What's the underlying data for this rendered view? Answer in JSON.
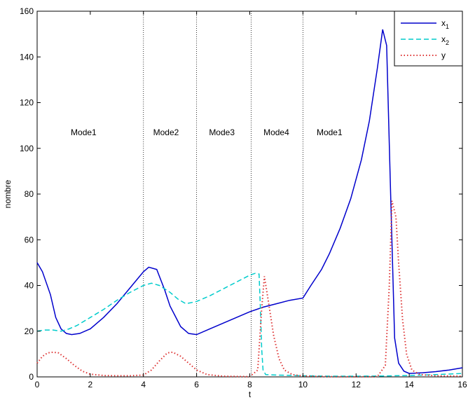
{
  "chart_data": {
    "type": "line",
    "title": "",
    "xlabel": "t",
    "ylabel": "nombre",
    "xlim": [
      0,
      16
    ],
    "ylim": [
      0,
      160
    ],
    "x_ticks": [
      0,
      2,
      4,
      6,
      8,
      10,
      12,
      14,
      16
    ],
    "y_ticks": [
      0,
      20,
      40,
      60,
      80,
      100,
      120,
      140,
      160
    ],
    "grid": false,
    "legend_position": "top-right",
    "mode_boundaries": [
      4,
      6,
      8.05,
      10
    ],
    "mode_labels": [
      {
        "text": "Mode1",
        "x": 1.75,
        "y": 107
      },
      {
        "text": "Mode2",
        "x": 4.85,
        "y": 107
      },
      {
        "text": "Mode3",
        "x": 6.95,
        "y": 107
      },
      {
        "text": "Mode4",
        "x": 9.0,
        "y": 107
      },
      {
        "text": "Mode1",
        "x": 11.0,
        "y": 107
      }
    ],
    "legend": [
      {
        "label": "x",
        "sub": "1"
      },
      {
        "label": "x",
        "sub": "2"
      },
      {
        "label": "y",
        "sub": ""
      }
    ],
    "series": [
      {
        "color": "#0000cc",
        "dash": "solid",
        "points": [
          [
            0,
            50
          ],
          [
            0.2,
            46
          ],
          [
            0.5,
            36
          ],
          [
            0.7,
            26
          ],
          [
            0.9,
            21
          ],
          [
            1.1,
            19
          ],
          [
            1.3,
            18.5
          ],
          [
            1.6,
            19
          ],
          [
            2,
            21
          ],
          [
            2.5,
            26
          ],
          [
            3,
            32
          ],
          [
            3.5,
            39
          ],
          [
            4,
            46
          ],
          [
            4.2,
            48
          ],
          [
            4.5,
            47
          ],
          [
            4.8,
            38
          ],
          [
            5,
            31
          ],
          [
            5.4,
            22
          ],
          [
            5.7,
            19
          ],
          [
            6,
            18.5
          ],
          [
            6.5,
            21
          ],
          [
            7,
            23.5
          ],
          [
            7.5,
            26
          ],
          [
            8,
            28.5
          ],
          [
            8.5,
            30.5
          ],
          [
            9,
            32
          ],
          [
            9.5,
            33.5
          ],
          [
            10,
            34.5
          ],
          [
            10.3,
            40
          ],
          [
            10.7,
            47
          ],
          [
            11,
            54
          ],
          [
            11.4,
            65
          ],
          [
            11.8,
            78
          ],
          [
            12.2,
            95
          ],
          [
            12.5,
            112
          ],
          [
            12.8,
            135
          ],
          [
            13,
            152
          ],
          [
            13.15,
            145
          ],
          [
            13.3,
            80
          ],
          [
            13.45,
            17
          ],
          [
            13.6,
            6
          ],
          [
            13.8,
            2.5
          ],
          [
            14,
            1.5
          ],
          [
            14.5,
            1.8
          ],
          [
            15,
            2.3
          ],
          [
            15.5,
            3
          ],
          [
            16,
            4
          ]
        ]
      },
      {
        "color": "#00cccc",
        "dash": "dashed",
        "points": [
          [
            0,
            20
          ],
          [
            0.3,
            20.5
          ],
          [
            0.6,
            20.5
          ],
          [
            0.9,
            20
          ],
          [
            1.2,
            21
          ],
          [
            1.5,
            22.5
          ],
          [
            2,
            26
          ],
          [
            2.5,
            29.5
          ],
          [
            3,
            33.5
          ],
          [
            3.5,
            37
          ],
          [
            4,
            40
          ],
          [
            4.3,
            41
          ],
          [
            4.6,
            40
          ],
          [
            5,
            37
          ],
          [
            5.3,
            34
          ],
          [
            5.6,
            32
          ],
          [
            6,
            33
          ],
          [
            6.5,
            35.5
          ],
          [
            7,
            38.5
          ],
          [
            7.5,
            41.5
          ],
          [
            8,
            44.5
          ],
          [
            8.2,
            45.3
          ],
          [
            8.35,
            45
          ],
          [
            8.4,
            30
          ],
          [
            8.45,
            12
          ],
          [
            8.5,
            3
          ],
          [
            8.6,
            1
          ],
          [
            9,
            0.8
          ],
          [
            10,
            0.5
          ],
          [
            11,
            0.3
          ],
          [
            12,
            0.3
          ],
          [
            13,
            0.4
          ],
          [
            14,
            0.6
          ],
          [
            15,
            1
          ],
          [
            16,
            1.5
          ]
        ]
      },
      {
        "color": "#dd3333",
        "dash": "dotted",
        "points": [
          [
            0,
            6
          ],
          [
            0.2,
            9
          ],
          [
            0.4,
            10.5
          ],
          [
            0.6,
            10.8
          ],
          [
            0.8,
            10.5
          ],
          [
            1.1,
            8
          ],
          [
            1.4,
            5
          ],
          [
            1.7,
            2.5
          ],
          [
            2,
            1.2
          ],
          [
            2.5,
            0.6
          ],
          [
            3,
            0.5
          ],
          [
            3.5,
            0.5
          ],
          [
            4,
            0.8
          ],
          [
            4.3,
            3
          ],
          [
            4.6,
            7
          ],
          [
            4.9,
            10.5
          ],
          [
            5.1,
            10.8
          ],
          [
            5.4,
            9
          ],
          [
            5.7,
            6
          ],
          [
            6,
            3
          ],
          [
            6.4,
            1
          ],
          [
            7,
            0.3
          ],
          [
            8,
            0.1
          ],
          [
            8.3,
            3
          ],
          [
            8.45,
            30
          ],
          [
            8.55,
            44
          ],
          [
            8.7,
            33
          ],
          [
            8.9,
            18
          ],
          [
            9.1,
            8
          ],
          [
            9.3,
            3
          ],
          [
            9.6,
            1
          ],
          [
            10,
            0.4
          ],
          [
            11,
            0.1
          ],
          [
            12,
            0.05
          ],
          [
            12.8,
            0.1
          ],
          [
            13.1,
            5
          ],
          [
            13.25,
            40
          ],
          [
            13.35,
            77
          ],
          [
            13.5,
            70
          ],
          [
            13.6,
            50
          ],
          [
            13.75,
            25
          ],
          [
            13.9,
            10
          ],
          [
            14.1,
            3
          ],
          [
            14.4,
            1
          ],
          [
            15,
            0.5
          ],
          [
            16,
            0.3
          ]
        ]
      }
    ]
  }
}
